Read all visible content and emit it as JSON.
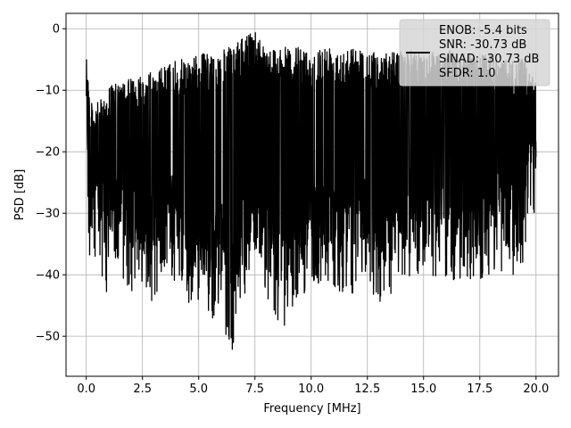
{
  "chart_data": {
    "type": "line",
    "title": "",
    "xlabel": "Frequency [MHz]",
    "ylabel": "PSD [dB]",
    "xlim": [
      -0.9,
      21.0
    ],
    "ylim": [
      -56.5,
      2.5
    ],
    "xticks": [
      0.0,
      2.5,
      5.0,
      7.5,
      10.0,
      12.5,
      15.0,
      17.5,
      20.0
    ],
    "xtick_labels": [
      "0.0",
      "2.5",
      "5.0",
      "7.5",
      "10.0",
      "12.5",
      "15.0",
      "17.5",
      "20.0"
    ],
    "yticks": [
      0,
      -10,
      -20,
      -30,
      -40,
      -50
    ],
    "ytick_labels": [
      "0",
      "−10",
      "−20",
      "−30",
      "−40",
      "−50"
    ],
    "grid": true,
    "legend_position": "top-right",
    "series": [
      {
        "color": "#000000",
        "style": "dense noise PSD trace (approximate shape)",
        "x": [
          0.0,
          0.05,
          0.1,
          0.2,
          0.3,
          0.5,
          0.8,
          1.0,
          1.5,
          2.0,
          2.5,
          3.0,
          3.5,
          4.0,
          4.5,
          5.0,
          5.5,
          6.0,
          6.4,
          7.0,
          7.5,
          8.0,
          8.8,
          9.5,
          10.0,
          10.8,
          11.5,
          12.0,
          12.5,
          13.0,
          13.1,
          14.0,
          15.0,
          16.0,
          17.0,
          17.8,
          18.5,
          19.0,
          19.5,
          20.0
        ],
        "envelope_top": [
          -6,
          -1.5,
          -8,
          -12,
          -12,
          -12,
          -11,
          -9,
          -9,
          -8,
          -7,
          -7,
          -6,
          -5,
          -5,
          -4,
          -4,
          -3.5,
          -3,
          -1.5,
          0,
          -3,
          -3,
          -3,
          -3.5,
          -2.5,
          -3,
          -3,
          -3.5,
          -4,
          -4,
          -3.5,
          -3.5,
          -3.5,
          -4,
          -4,
          -5,
          -5,
          -5,
          -9
        ],
        "envelope_bottom": [
          -22,
          -28,
          -40,
          -41,
          -40,
          -42,
          -43,
          -43,
          -40,
          -44,
          -41,
          -45,
          -40,
          -42,
          -45,
          -44,
          -49.5,
          -45,
          -54,
          -44,
          -42,
          -44,
          -50,
          -43,
          -43,
          -42,
          -43,
          -43,
          -42,
          -45,
          -48,
          -41,
          -40,
          -41,
          -41,
          -41,
          -40,
          -40,
          -38,
          -30
        ]
      }
    ],
    "legend": {
      "lines": [
        "ENOB: -5.4 bits",
        "SNR: -30.73 dB",
        "SINAD: -30.73 dB",
        "SFDR: 1.0"
      ]
    }
  }
}
